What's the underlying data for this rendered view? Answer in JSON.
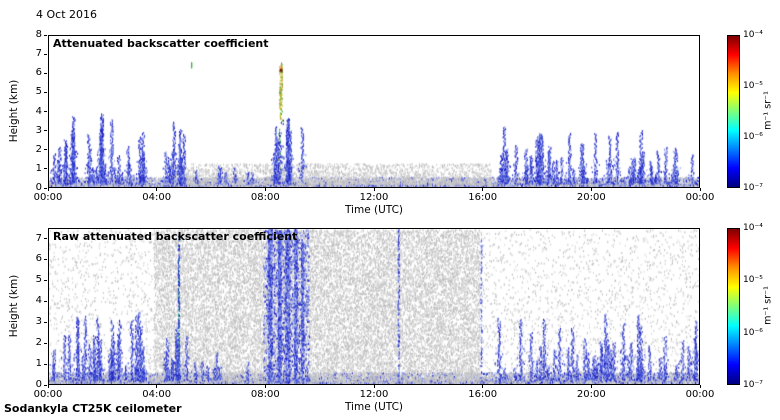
{
  "header": {
    "date_label": "4 Oct 2016"
  },
  "footer": {
    "instrument_label": "Sodankyla CT25K ceilometer"
  },
  "colors": {
    "blues": [
      "#1a1abf",
      "#2a3ad0",
      "#4a5ad8",
      "#7f8ee6",
      "#9fabec"
    ],
    "grays": [
      "#c3c3c3",
      "#cfcfcf",
      "#dadada",
      "#bababa"
    ],
    "surface_band": "#b9bac2",
    "green": "#2fa32f",
    "dark_red": "#7a1500",
    "column_colors": [
      "#2fa32f",
      "#7ab62c",
      "#c9c92a",
      "#d98a24"
    ],
    "colorbar_gradient": [
      "#7f0000",
      "#ff0000",
      "#ff9000",
      "#ffff00",
      "#7dff7a",
      "#00ffff",
      "#0080ff",
      "#0000ff",
      "#00007f"
    ]
  },
  "chart_data": [
    {
      "type": "heatmap",
      "title": "Attenuated backscatter coefficient",
      "xlabel": "Time (UTC)",
      "ylabel": "Height (km)",
      "xlim_hours": [
        0,
        24
      ],
      "ylim_km": [
        0,
        8
      ],
      "x_ticks": [
        "00:00",
        "04:00",
        "08:00",
        "12:00",
        "16:00",
        "20:00",
        "00:00"
      ],
      "y_ticks": [
        8,
        7,
        6,
        5,
        4,
        3,
        2,
        1,
        0
      ],
      "colorbar": {
        "unit_label": "m⁻¹ sr⁻¹",
        "tick_labels": [
          "10⁻⁴",
          "10⁻⁵",
          "10⁻⁶",
          "10⁻⁷"
        ],
        "colormap": "jet",
        "range_m1sr1": [
          "1e-7",
          "1e-4"
        ]
      },
      "features": {
        "surface_band_km": 0.12,
        "surface_top_km": 0.45,
        "surface_dots": 8000,
        "low_speckle": {
          "start_h": 4.5,
          "end_h": 16.3,
          "max_km": 1.1,
          "dots": 2600
        },
        "spike_clusters": [
          {
            "start_h": 0.05,
            "end_h": 3.6,
            "max_km": 3.9,
            "spikes": 30
          },
          {
            "start_h": 4.25,
            "end_h": 5.15,
            "max_km": 3.6,
            "spikes": 10
          },
          {
            "start_h": 5.3,
            "end_h": 7.9,
            "max_km": 1.5,
            "spikes": 7
          },
          {
            "start_h": 8.1,
            "end_h": 9.4,
            "max_km": 4.3,
            "spikes": 12
          },
          {
            "start_h": 16.5,
            "end_h": 23.95,
            "max_km": 3.3,
            "spikes": 46
          }
        ],
        "high_column": {
          "hour": 8.55,
          "base_km": 3.6,
          "top_km": 6.6,
          "dark_dot_km": 6.3
        },
        "isolated_dash": {
          "hour": 5.25,
          "km": 6.6
        }
      }
    },
    {
      "type": "heatmap",
      "title": "Raw attenuated backscatter coefficient",
      "xlabel": "Time (UTC)",
      "ylabel": "Height (km)",
      "xlim_hours": [
        0,
        24
      ],
      "ylim_km": [
        0,
        7.5
      ],
      "x_ticks": [
        "00:00",
        "04:00",
        "08:00",
        "12:00",
        "16:00",
        "20:00",
        "00:00"
      ],
      "y_ticks": [
        7,
        6,
        5,
        4,
        3,
        2,
        1,
        0
      ],
      "colorbar": {
        "unit_label": "m⁻¹ sr⁻¹",
        "tick_labels": [
          "10⁻⁴",
          "10⁻⁵",
          "10⁻⁶",
          "10⁻⁷"
        ],
        "colormap": "jet",
        "range_m1sr1": [
          "1e-7",
          "1e-4"
        ]
      },
      "features": {
        "surface_band_km": 0.12,
        "surface_top_km": 0.5,
        "surface_dots": 9000,
        "noise_blocks": [
          {
            "start_h": 0,
            "end_h": 24,
            "dots": 5200
          },
          {
            "start_h": 3.85,
            "end_h": 15.9,
            "dots": 16000
          }
        ],
        "noise_columns": [
          {
            "hour": 4.78,
            "width_h": 0.06,
            "top_km": 7.2,
            "dots": 150,
            "color": "#18a08c"
          },
          {
            "hour": 8.15,
            "width_h": 0.15,
            "top_km": 7.5,
            "dots": 550
          },
          {
            "hour": 8.5,
            "width_h": 0.12,
            "top_km": 7.5,
            "dots": 700
          },
          {
            "hour": 8.8,
            "width_h": 0.18,
            "top_km": 7.5,
            "dots": 550
          },
          {
            "hour": 9.1,
            "width_h": 0.12,
            "top_km": 7.5,
            "dots": 450
          },
          {
            "hour": 9.35,
            "width_h": 0.1,
            "top_km": 7.0,
            "dots": 300
          },
          {
            "hour": 12.9,
            "width_h": 0.06,
            "top_km": 7.5,
            "dots": 130
          },
          {
            "hour": 15.95,
            "width_h": 0.05,
            "top_km": 7.0,
            "dots": 80
          }
        ],
        "blue_scatter": {
          "start_h": 7.9,
          "end_h": 9.6,
          "max_km": 7.5,
          "dots": 1400
        },
        "spike_clusters": [
          {
            "start_h": 0.05,
            "end_h": 3.6,
            "max_km": 4.0,
            "spikes": 30
          },
          {
            "start_h": 4.25,
            "end_h": 5.15,
            "max_km": 3.6,
            "spikes": 10
          },
          {
            "start_h": 5.3,
            "end_h": 7.9,
            "max_km": 1.6,
            "spikes": 7
          },
          {
            "start_h": 16.5,
            "end_h": 23.95,
            "max_km": 3.4,
            "spikes": 46
          }
        ]
      }
    }
  ]
}
